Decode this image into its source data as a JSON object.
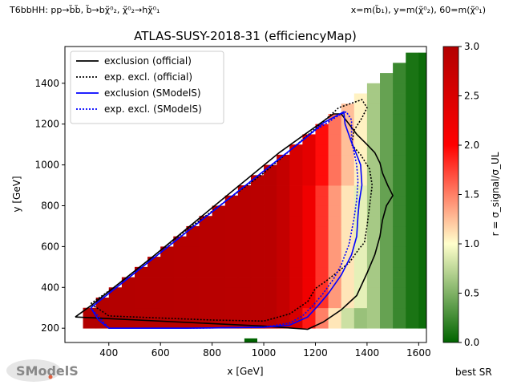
{
  "header": {
    "left_note": "T6bbHH: pp→b̃b̃, b̃→bχ̃⁰₂, χ̃⁰₂→hχ̃⁰₁",
    "right_note": "x=m(b̃₁), y=m(χ̃⁰₂), 60=m(χ̃⁰₁)"
  },
  "footer": {
    "logo_text": "SModelS",
    "best_sr": "best SR"
  },
  "chart_data": {
    "type": "heatmap",
    "title": "ATLAS-SUSY-2018-31 (efficiencyMap)",
    "xlabel": "x [GeV]",
    "ylabel": "y [GeV]",
    "xlim": [
      230,
      1630
    ],
    "ylim": [
      130,
      1580
    ],
    "xticks": [
      400,
      600,
      800,
      1000,
      1200,
      1400,
      1600
    ],
    "yticks": [
      200,
      400,
      600,
      800,
      1000,
      1200,
      1400
    ],
    "colorbar": {
      "label": "r = σ_signal/σ_UL",
      "range": [
        0.0,
        3.0
      ],
      "ticks": [
        0.0,
        0.5,
        1.0,
        1.5,
        2.0,
        2.5,
        3.0
      ],
      "colors": [
        "#006400",
        "#ffffcc",
        "#ff0000",
        "#b30000"
      ]
    },
    "grid": false,
    "legend_position": "top-left",
    "legend": [
      {
        "label": "exclusion (official)",
        "color": "#000000",
        "style": "solid"
      },
      {
        "label": "exp. excl. (official)",
        "color": "#000000",
        "style": "dotted"
      },
      {
        "label": "exclusion (SModelS)",
        "color": "#0000ff",
        "style": "solid"
      },
      {
        "label": "exp. excl. (SModelS)",
        "color": "#0000ff",
        "style": "dotted"
      }
    ],
    "grid_cells": {
      "x_start": 325,
      "x_step": 50,
      "x_count": 27,
      "y_start": 225,
      "y_step": 50,
      "y_count": 27,
      "diagonal_offset": 60,
      "note_r": "r by x column, decreasing into green near the right edge"
    },
    "r_profile": [
      {
        "x": 350,
        "r": 3.0
      },
      {
        "x": 1050,
        "r": 2.9
      },
      {
        "x": 1150,
        "r": 2.4
      },
      {
        "x": 1200,
        "r": 2.0
      },
      {
        "x": 1250,
        "r": 1.6
      },
      {
        "x": 1300,
        "r": 1.2
      },
      {
        "x": 1350,
        "r": 1.0
      },
      {
        "x": 1400,
        "r": 0.8
      },
      {
        "x": 1450,
        "r": 0.5
      },
      {
        "x": 1500,
        "r": 0.3
      },
      {
        "x": 1550,
        "r": 0.15
      },
      {
        "x": 1600,
        "r": 0.05
      }
    ],
    "cells_extra": [
      {
        "x": 950,
        "y": 125,
        "r": 0.0
      }
    ],
    "curves": [
      {
        "name": "exclusion (official)",
        "color": "#000000",
        "dash": "",
        "points": [
          [
            270,
            255
          ],
          [
            1000,
            210
          ],
          [
            1170,
            195
          ],
          [
            1230,
            230
          ],
          [
            1300,
            290
          ],
          [
            1360,
            360
          ],
          [
            1400,
            470
          ],
          [
            1430,
            560
          ],
          [
            1450,
            650
          ],
          [
            1460,
            730
          ],
          [
            1475,
            800
          ],
          [
            1500,
            850
          ],
          [
            1480,
            900
          ],
          [
            1460,
            960
          ],
          [
            1450,
            1010
          ],
          [
            1430,
            1060
          ],
          [
            1400,
            1100
          ],
          [
            1360,
            1150
          ],
          [
            1330,
            1200
          ],
          [
            1300,
            1250
          ],
          [
            1270,
            1250
          ],
          [
            1060,
            1060
          ],
          [
            800,
            790
          ],
          [
            560,
            540
          ],
          [
            330,
            310
          ],
          [
            270,
            255
          ]
        ]
      },
      {
        "name": "exp. excl. (official)",
        "color": "#000000",
        "dash": "2,2",
        "points": [
          [
            330,
            320
          ],
          [
            420,
            400
          ],
          [
            700,
            680
          ],
          [
            1000,
            960
          ],
          [
            1220,
            1200
          ],
          [
            1290,
            1280
          ],
          [
            1380,
            1320
          ],
          [
            1400,
            1280
          ],
          [
            1380,
            1230
          ],
          [
            1350,
            1170
          ],
          [
            1340,
            1100
          ],
          [
            1375,
            1050
          ],
          [
            1410,
            980
          ],
          [
            1420,
            900
          ],
          [
            1410,
            800
          ],
          [
            1400,
            700
          ],
          [
            1390,
            620
          ],
          [
            1370,
            590
          ],
          [
            1330,
            520
          ],
          [
            1280,
            470
          ],
          [
            1240,
            430
          ],
          [
            1200,
            395
          ],
          [
            1170,
            330
          ],
          [
            1100,
            270
          ],
          [
            1000,
            235
          ],
          [
            800,
            240
          ],
          [
            600,
            250
          ],
          [
            400,
            260
          ],
          [
            330,
            320
          ]
        ]
      },
      {
        "name": "exclusion (SModelS)",
        "color": "#0000ff",
        "dash": "",
        "points": [
          [
            330,
            300
          ],
          [
            1000,
            970
          ],
          [
            1160,
            1130
          ],
          [
            1230,
            1205
          ],
          [
            1310,
            1260
          ],
          [
            1315,
            1200
          ],
          [
            1340,
            1110
          ],
          [
            1360,
            1050
          ],
          [
            1375,
            1000
          ],
          [
            1380,
            900
          ],
          [
            1370,
            820
          ],
          [
            1365,
            750
          ],
          [
            1360,
            650
          ],
          [
            1340,
            560
          ],
          [
            1300,
            460
          ],
          [
            1250,
            370
          ],
          [
            1210,
            310
          ],
          [
            1170,
            255
          ],
          [
            1100,
            215
          ],
          [
            1000,
            205
          ],
          [
            700,
            200
          ],
          [
            400,
            200
          ],
          [
            360,
            240
          ],
          [
            330,
            300
          ]
        ]
      },
      {
        "name": "exp. excl. (SModelS)",
        "color": "#0000ff",
        "dash": "2,2",
        "points": [
          [
            330,
            300
          ],
          [
            1000,
            970
          ],
          [
            1200,
            1170
          ],
          [
            1300,
            1250
          ],
          [
            1320,
            1260
          ],
          [
            1340,
            1220
          ],
          [
            1340,
            1120
          ],
          [
            1350,
            1060
          ],
          [
            1360,
            1000
          ],
          [
            1365,
            920
          ],
          [
            1360,
            830
          ],
          [
            1350,
            740
          ],
          [
            1330,
            610
          ],
          [
            1300,
            510
          ],
          [
            1270,
            440
          ],
          [
            1230,
            370
          ],
          [
            1190,
            310
          ],
          [
            1150,
            260
          ],
          [
            1100,
            225
          ],
          [
            1000,
            205
          ],
          [
            700,
            200
          ],
          [
            400,
            200
          ],
          [
            330,
            300
          ]
        ]
      }
    ]
  }
}
